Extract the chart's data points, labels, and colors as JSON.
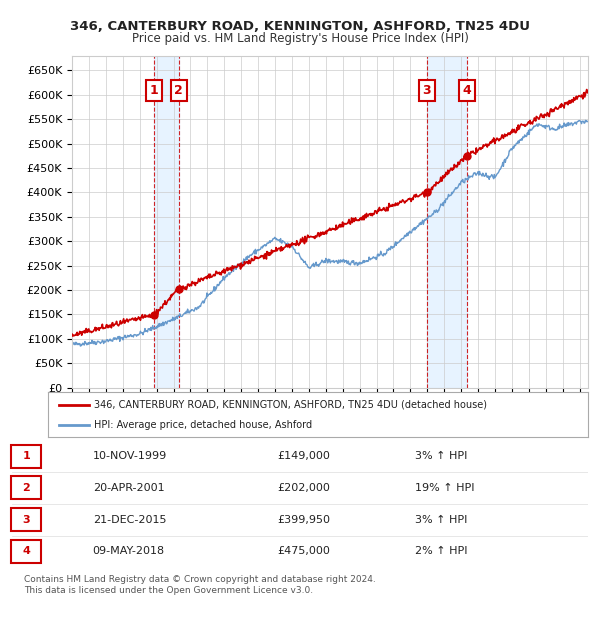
{
  "title": "346, CANTERBURY ROAD, KENNINGTON, ASHFORD, TN25 4DU",
  "subtitle": "Price paid vs. HM Land Registry's House Price Index (HPI)",
  "ylim": [
    0,
    680000
  ],
  "yticks": [
    0,
    50000,
    100000,
    150000,
    200000,
    250000,
    300000,
    350000,
    400000,
    450000,
    500000,
    550000,
    600000,
    650000
  ],
  "xlim_start": 1995.0,
  "xlim_end": 2025.5,
  "sale_dates": [
    1999.863,
    2001.306,
    2015.972,
    2018.355
  ],
  "sale_prices": [
    149000,
    202000,
    399950,
    475000
  ],
  "sale_labels": [
    "1",
    "2",
    "3",
    "4"
  ],
  "hpi_color": "#6699cc",
  "price_color": "#cc0000",
  "vline_color": "#cc0000",
  "shade_color": "#ddeeff",
  "legend_property_label": "346, CANTERBURY ROAD, KENNINGTON, ASHFORD, TN25 4DU (detached house)",
  "legend_hpi_label": "HPI: Average price, detached house, Ashford",
  "table_rows": [
    [
      "1",
      "10-NOV-1999",
      "£149,000",
      "3% ↑ HPI"
    ],
    [
      "2",
      "20-APR-2001",
      "£202,000",
      "19% ↑ HPI"
    ],
    [
      "3",
      "21-DEC-2015",
      "£399,950",
      "3% ↑ HPI"
    ],
    [
      "4",
      "09-MAY-2018",
      "£475,000",
      "2% ↑ HPI"
    ]
  ],
  "footnote": "Contains HM Land Registry data © Crown copyright and database right 2024.\nThis data is licensed under the Open Government Licence v3.0.",
  "background_color": "#ffffff",
  "grid_color": "#cccccc"
}
